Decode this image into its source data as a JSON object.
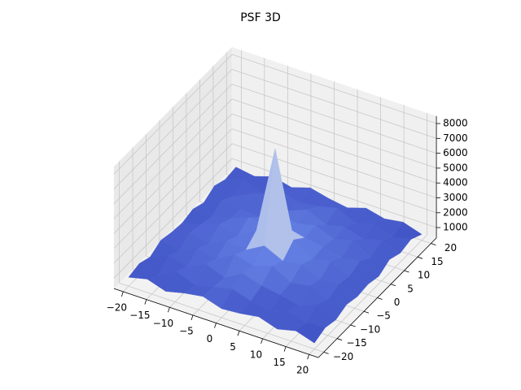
{
  "chart_data": {
    "type": "surface",
    "title": "PSF 3D",
    "colormap": "coolwarm",
    "x": [
      -20,
      -16,
      -12,
      -8,
      -4,
      0,
      4,
      8,
      12,
      16,
      20
    ],
    "y": [
      -20,
      -16,
      -12,
      -8,
      -4,
      0,
      4,
      8,
      12,
      16,
      20
    ],
    "z": [
      [
        900,
        1200,
        800,
        1100,
        1300,
        900,
        1000,
        1200,
        800,
        1100,
        700
      ],
      [
        1100,
        700,
        1400,
        900,
        1200,
        1500,
        1100,
        800,
        1300,
        900,
        1000
      ],
      [
        800,
        1300,
        1000,
        1600,
        1100,
        1800,
        1400,
        1200,
        900,
        1400,
        800
      ],
      [
        1200,
        900,
        1500,
        1200,
        1900,
        1600,
        2000,
        1300,
        1500,
        1000,
        1100
      ],
      [
        1000,
        1400,
        1100,
        1700,
        1500,
        2200,
        1600,
        1800,
        1200,
        1300,
        900
      ],
      [
        900,
        1200,
        1600,
        1300,
        2100,
        8000,
        2300,
        1400,
        1700,
        1100,
        1000
      ],
      [
        1100,
        1000,
        1300,
        1800,
        1600,
        2000,
        1700,
        1500,
        1200,
        1400,
        800
      ],
      [
        800,
        1400,
        1200,
        1100,
        1900,
        1500,
        1800,
        1300,
        1600,
        900,
        1200
      ],
      [
        1200,
        900,
        1500,
        1300,
        1200,
        1700,
        1100,
        1400,
        1000,
        1300,
        900
      ],
      [
        900,
        1300,
        800,
        1400,
        1000,
        1200,
        1500,
        900,
        1300,
        800,
        1100
      ],
      [
        1000,
        800,
        1200,
        900,
        1300,
        1000,
        800,
        1200,
        900,
        1100,
        700
      ]
    ],
    "xlim": [
      -22,
      22
    ],
    "ylim": [
      -22,
      22
    ],
    "zlim": [
      300,
      8500
    ],
    "xticks": [
      {
        "value": -20,
        "label": "−20"
      },
      {
        "value": -15,
        "label": "−15"
      },
      {
        "value": -10,
        "label": "−10"
      },
      {
        "value": -5,
        "label": "−5"
      },
      0,
      5,
      10,
      15,
      20
    ],
    "yticks": [
      {
        "value": -20,
        "label": "−20"
      },
      {
        "value": -15,
        "label": "−15"
      },
      {
        "value": -10,
        "label": "−10"
      },
      {
        "value": -5,
        "label": "−5"
      },
      0,
      5,
      10,
      15,
      20
    ],
    "zticks": [
      1000,
      2000,
      3000,
      4000,
      5000,
      6000,
      7000,
      8000
    ],
    "grid": true
  }
}
